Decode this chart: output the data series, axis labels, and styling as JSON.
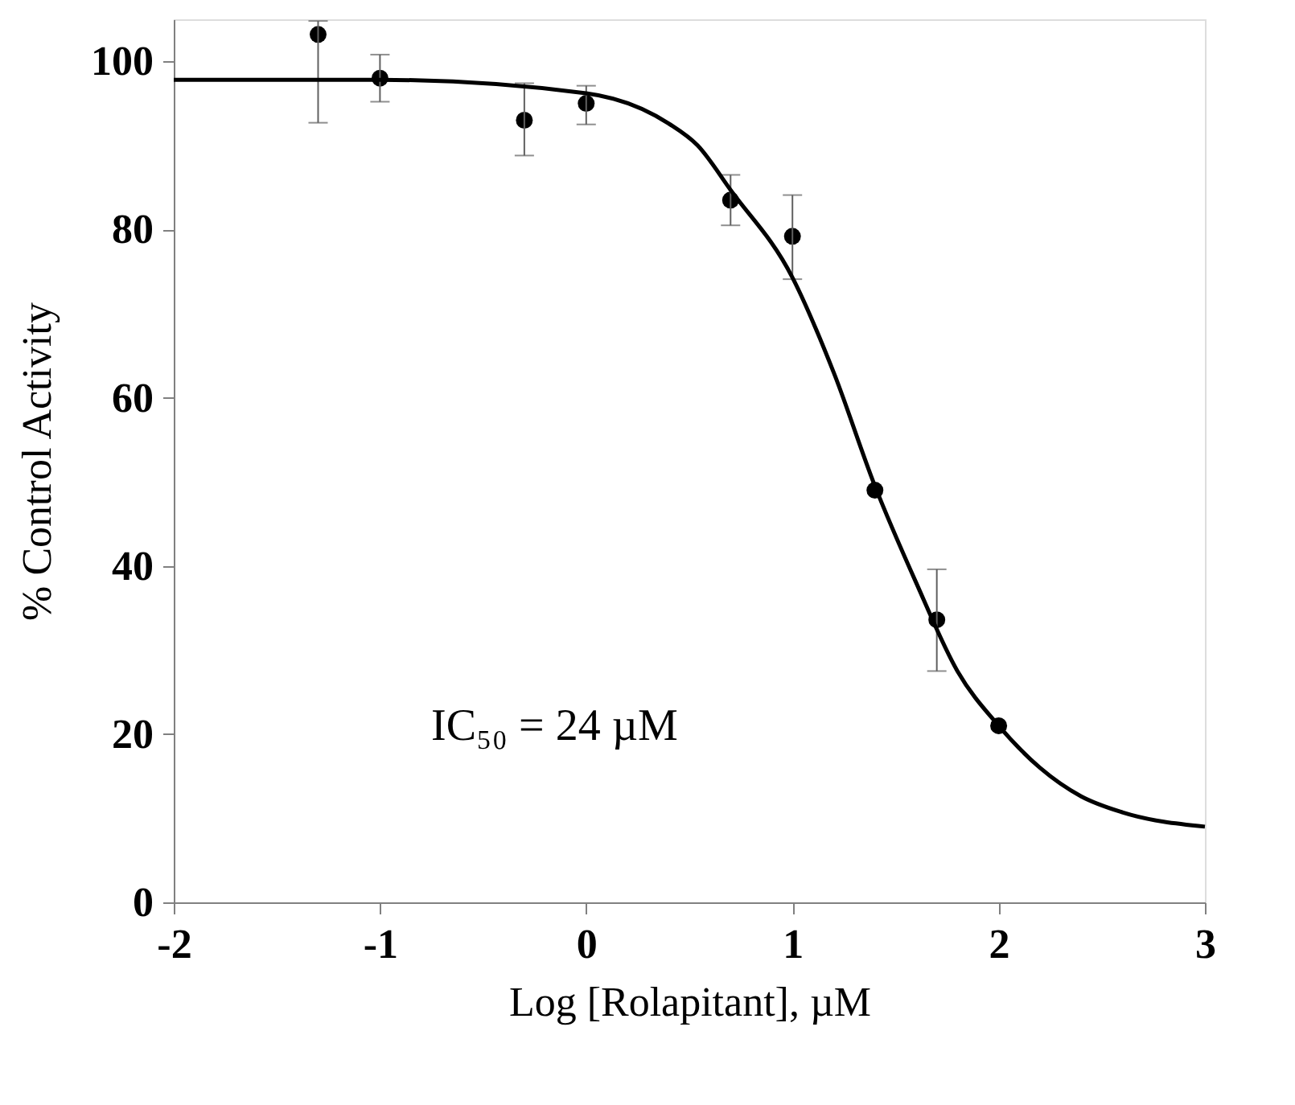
{
  "chart_data": {
    "type": "scatter",
    "xlabel": "Log [Rolapitant], µM",
    "ylabel": "% Control Activity",
    "annotations": [
      "IC₅₀ = 24 µM"
    ],
    "xlim": [
      -2,
      3
    ],
    "xticks": [
      -2,
      -1,
      0,
      1,
      2,
      3
    ],
    "ylim": [
      0,
      105
    ],
    "yticks": [
      0,
      20,
      40,
      60,
      80,
      100
    ],
    "grid": false,
    "series": [
      {
        "color": "#000000",
        "marker": "circle",
        "x": [
          -1.3,
          -1,
          -0.3,
          0,
          0.7,
          1,
          1.4,
          1.7,
          2
        ],
        "values": [
          103.2,
          98,
          93,
          95,
          83.5,
          79.2,
          49,
          33.6,
          21
        ],
        "errors": [
          [
            92.7,
            104.8
          ],
          [
            95.2,
            100.8
          ],
          [
            88.8,
            97.4
          ],
          [
            92.5,
            97.1
          ],
          [
            80.5,
            86.5
          ],
          [
            74.1,
            84.1
          ],
          null,
          [
            27.5,
            39.6
          ],
          null
        ]
      },
      {
        "type": "line",
        "color": "#000000",
        "line_style": "solid",
        "marker": "none",
        "x": [
          -2,
          -1,
          0,
          0.4,
          0.54,
          0.7,
          1,
          1.2,
          1.4,
          1.6,
          1.8,
          2,
          2.2,
          2.4,
          2.6,
          3
        ],
        "values": [
          97.8,
          97.8,
          96.2,
          92.6,
          90,
          84.7,
          74.3,
          63,
          49.5,
          38,
          27.5,
          21,
          16,
          12.6,
          10.7,
          9
        ]
      }
    ]
  }
}
